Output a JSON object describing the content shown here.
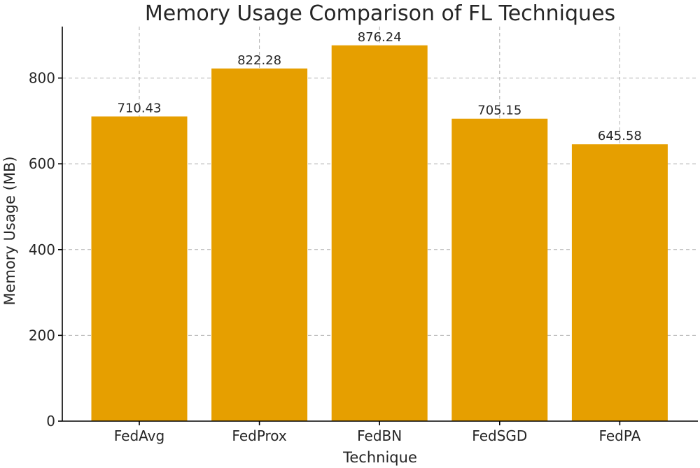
{
  "chart_data": {
    "type": "bar",
    "title": "Memory Usage Comparison of FL Techniques",
    "xlabel": "Technique",
    "ylabel": "Memory Usage (MB)",
    "categories": [
      "FedAvg",
      "FedProx",
      "FedBN",
      "FedSGD",
      "FedPA"
    ],
    "values": [
      710.43,
      822.28,
      876.24,
      705.15,
      645.58
    ],
    "value_labels": [
      "710.43",
      "822.28",
      "876.24",
      "705.15",
      "645.58"
    ],
    "ylim": [
      0,
      920
    ],
    "yticks": [
      0,
      200,
      400,
      600,
      800
    ],
    "ytick_labels": [
      "0",
      "200",
      "400",
      "600",
      "800"
    ],
    "grid": true,
    "bar_color": "#E69F00"
  }
}
